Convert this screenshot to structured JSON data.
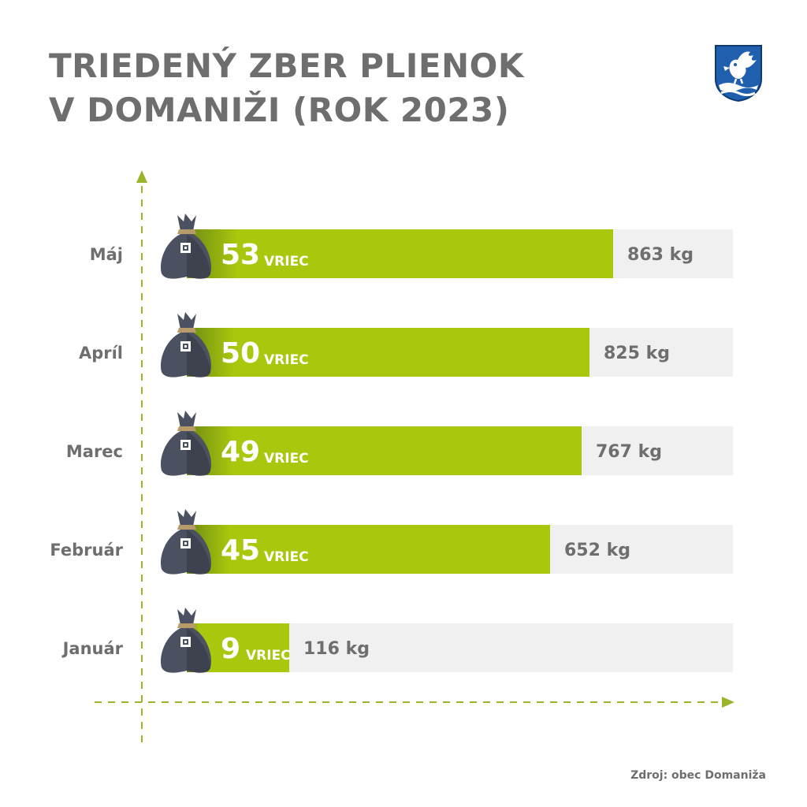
{
  "title_lines": [
    "TRIEDENÝ ZBER PLIENOK",
    "V DOMANIŽI (ROK 2023)"
  ],
  "source": "Zdroj: obec Domaniža",
  "icons": {
    "crest": "municipal-coat-of-arms-icon",
    "bag": "diaper-bag-icon"
  },
  "colors": {
    "title": "#6e6e6e",
    "bar": "#a9c80d",
    "track": "#f0f0f0",
    "bag": "#4b5160",
    "axis": "#9ab52a",
    "crest_blue": "#1f5fae"
  },
  "chart_data": {
    "type": "bar",
    "orientation": "horizontal",
    "title": "TRIEDENÝ ZBER PLIENOK V DOMANIŽI (ROK 2023)",
    "categories": [
      "Máj",
      "Apríl",
      "Marec",
      "Február",
      "Január"
    ],
    "unit_label": "VRIEC",
    "series": [
      {
        "values": [
          53,
          50,
          49,
          45,
          9
        ]
      }
    ],
    "weights": [
      "863 kg",
      "825 kg",
      "767 kg",
      "652 kg",
      "116 kg"
    ],
    "xlim": [
      0,
      80
    ],
    "grid": false,
    "legend": "none"
  }
}
